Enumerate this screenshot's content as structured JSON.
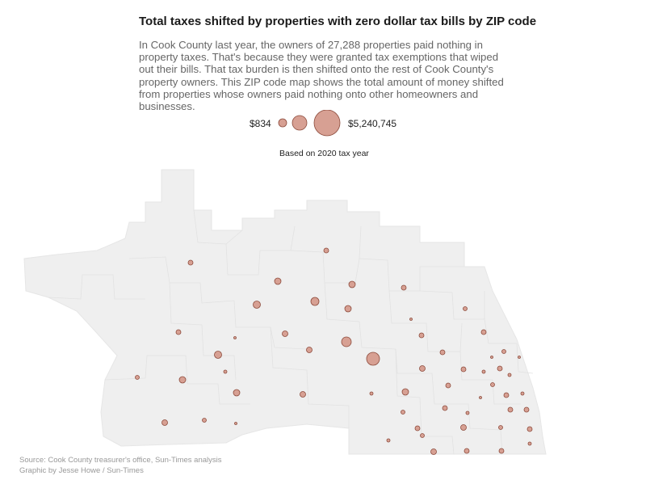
{
  "header": {
    "title": "Total taxes shifted by properties with zero dollar tax bills by ZIP code",
    "description": "In Cook County last year, the owners of 27,288 properties paid nothing in property taxes. That's because they were granted tax exemptions that wiped out their bills. That tax burden is then shifted onto the rest of Cook County's property owners. This ZIP code map shows the total amount of money shifted from properties whose owners paid nothing onto other homeowners and businesses."
  },
  "legend": {
    "min_label": "$834",
    "max_label": "$5,240,745",
    "min_value": 834,
    "max_value": 5240745
  },
  "basis_note": "Based on 2020 tax year",
  "footer": {
    "source": "Source: Cook County treasurer's office, Sun-Times analysis",
    "credit": "Graphic by Jesse Howe / Sun-Times"
  },
  "colors": {
    "land_fill": "#efefef",
    "zip_border": "#e2e2e2",
    "bubble_fill": "#d7a093",
    "bubble_stroke": "#8c4a3b"
  }
}
